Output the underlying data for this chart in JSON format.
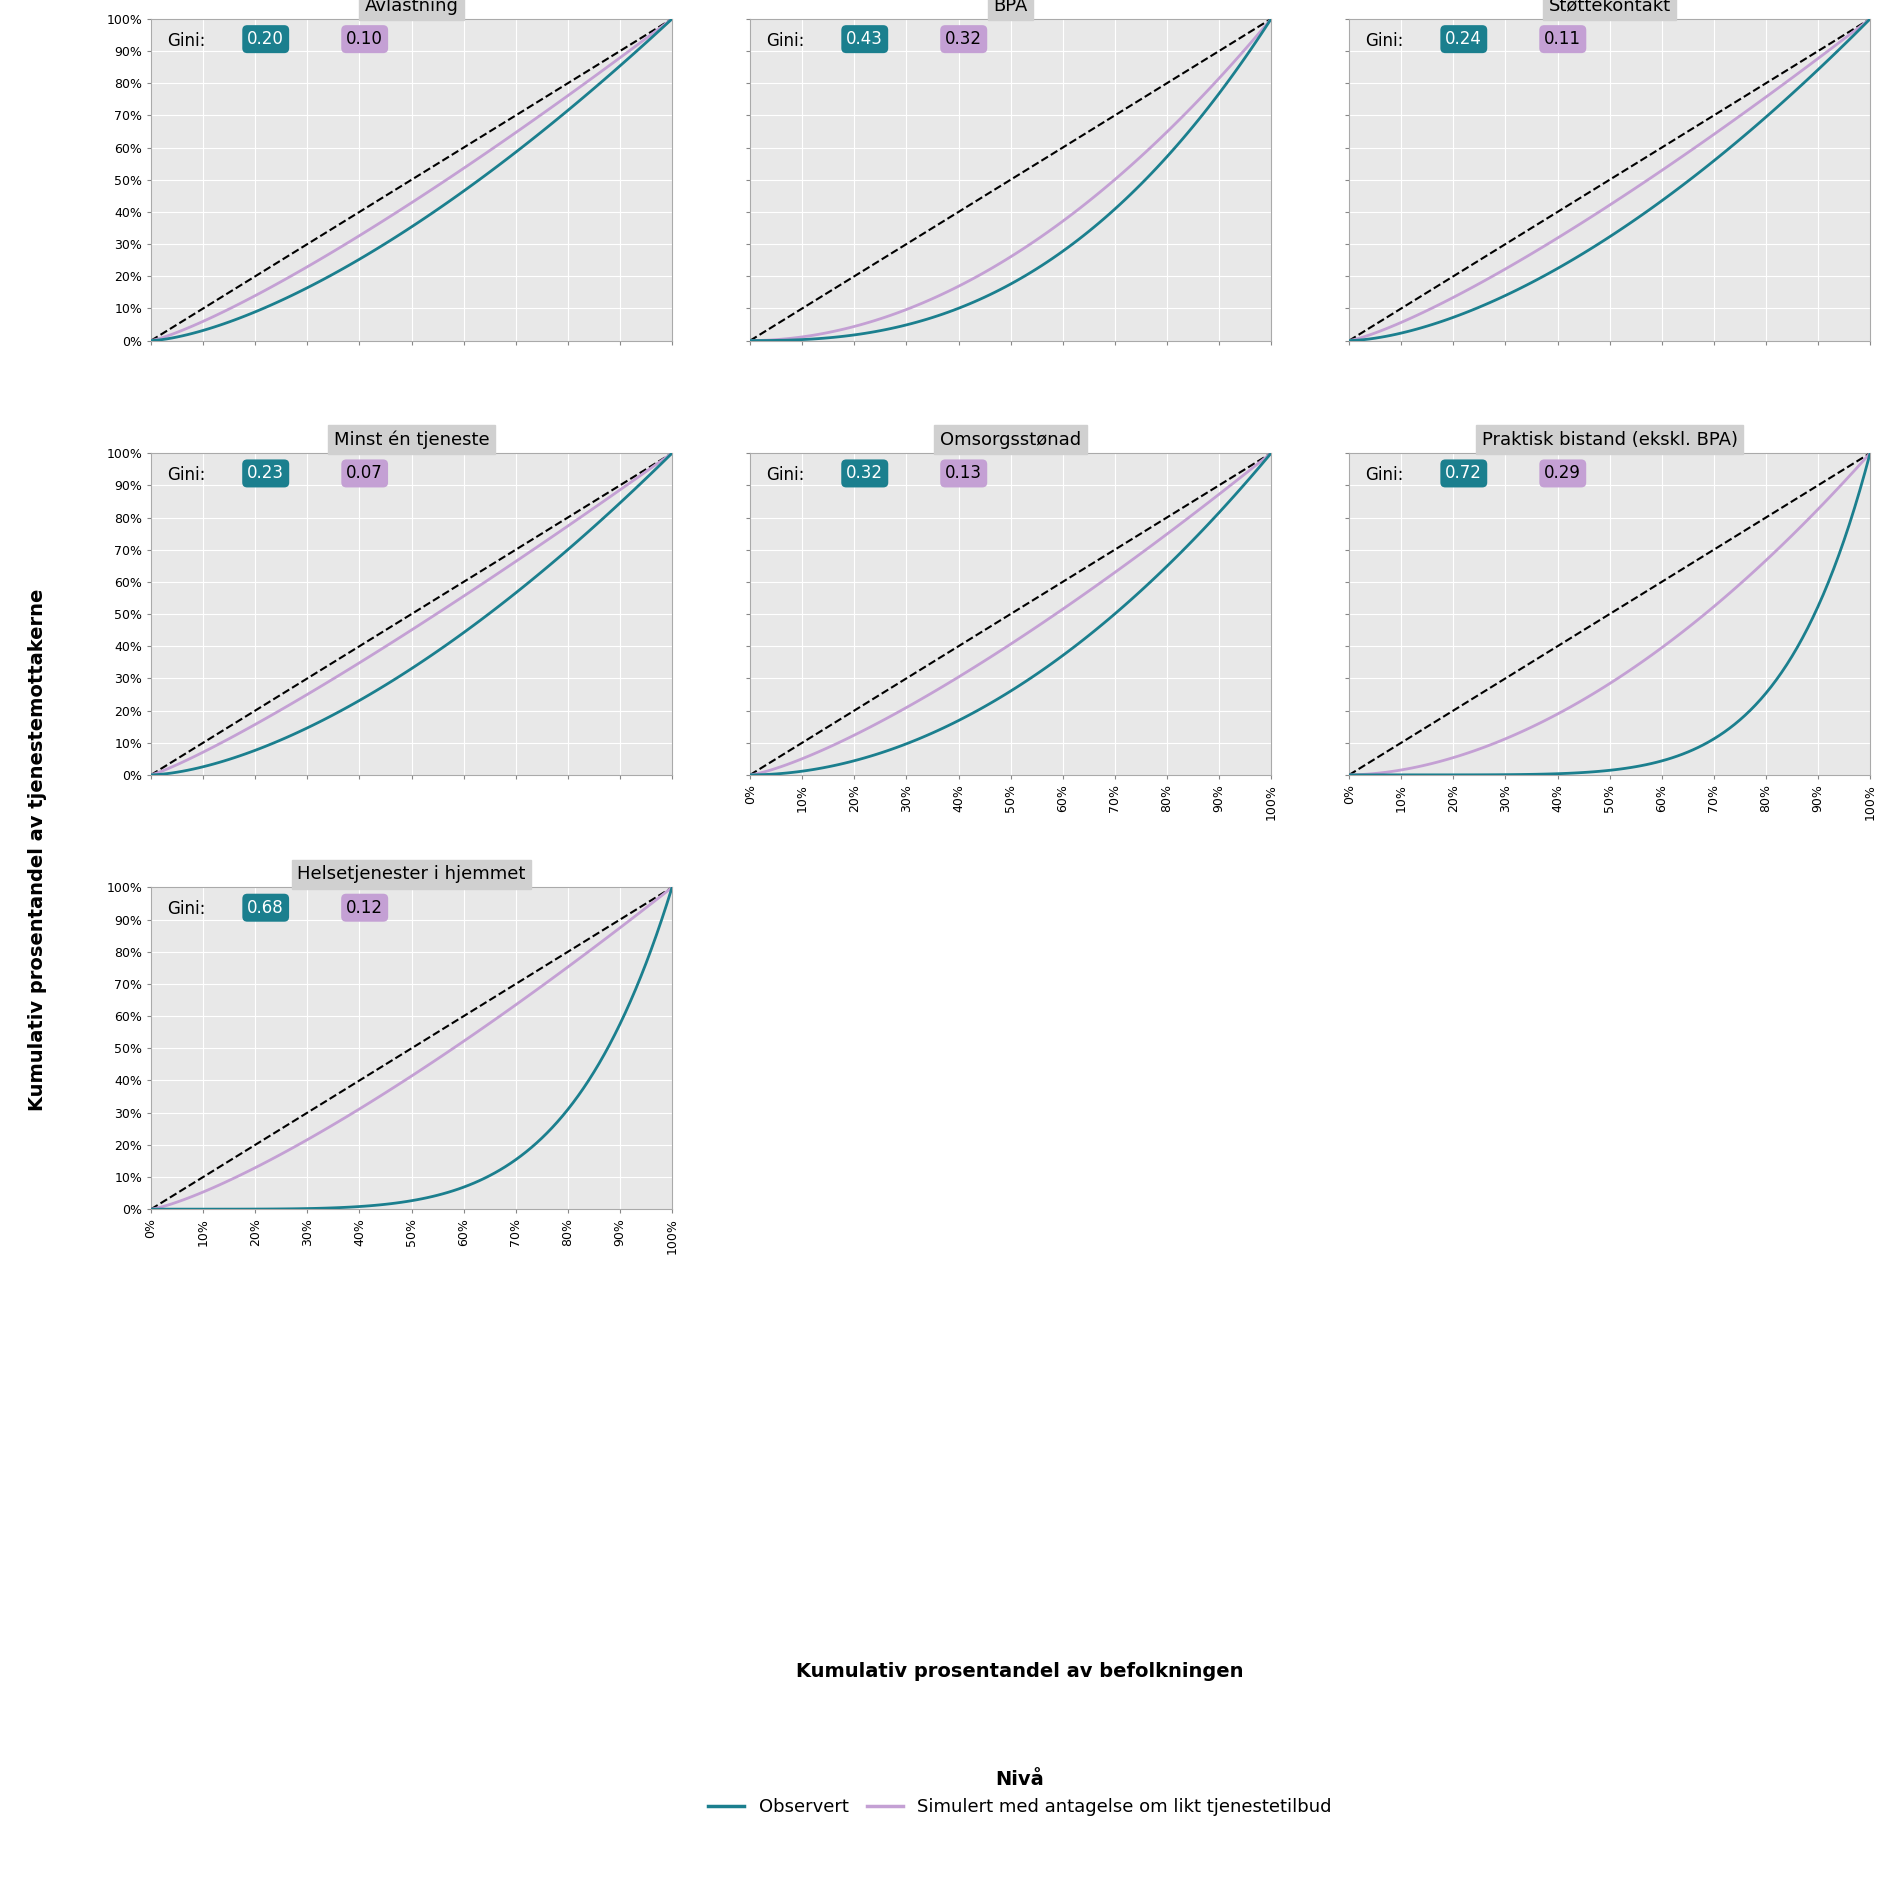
{
  "subplots": [
    {
      "title": "Avlastning",
      "gini_observed": 0.2,
      "gini_simulated": 0.1,
      "lorenz_observed_power": 1.5,
      "lorenz_simulated_power": 1.2
    },
    {
      "title": "BPA",
      "gini_observed": 0.43,
      "gini_simulated": 0.32,
      "lorenz_observed_power": 2.5,
      "lorenz_simulated_power": 2.0
    },
    {
      "title": "Støttekontakt",
      "gini_observed": 0.24,
      "gini_simulated": 0.11,
      "lorenz_observed_power": 1.6,
      "lorenz_simulated_power": 1.25
    },
    {
      "title": "Minst én tjeneste",
      "gini_observed": 0.23,
      "gini_simulated": 0.07,
      "lorenz_observed_power": 1.55,
      "lorenz_simulated_power": 1.1
    },
    {
      "title": "Omsorgsstønad",
      "gini_observed": 0.32,
      "gini_simulated": 0.13,
      "lorenz_observed_power": 2.0,
      "lorenz_simulated_power": 1.3
    },
    {
      "title": "Praktisk bistand (ekskl. BPA)",
      "gini_observed": 0.72,
      "gini_simulated": 0.29,
      "lorenz_observed_power": 5.5,
      "lorenz_simulated_power": 1.8
    },
    {
      "title": "Helsetjenester i hjemmet",
      "gini_observed": 0.68,
      "gini_simulated": 0.12,
      "lorenz_observed_power": 5.0,
      "lorenz_simulated_power": 1.27
    }
  ],
  "color_observed": "#1b7f8e",
  "color_simulated": "#c4a0d4",
  "color_gini_observed_bg": "#1b7f8e",
  "color_gini_simulated_bg": "#c4a0d4",
  "color_diagonal": "#000000",
  "background_color": "#e8e8e8",
  "plot_bg_color": "#e8e8e8",
  "ylabel": "Kumulativ prosentandel av tjenestemottakerne",
  "xlabel": "Kumulativ prosentandel av befolkningen",
  "legend_title": "Nivå",
  "legend_observed": "Observert",
  "legend_simulated": "Simulert med antagelse om likt tjenestetilbud",
  "tick_labels": [
    "0%",
    "10%",
    "20%",
    "30%",
    "40%",
    "50%",
    "60%",
    "70%",
    "80%",
    "90%",
    "100%"
  ],
  "tick_values": [
    0,
    0.1,
    0.2,
    0.3,
    0.4,
    0.5,
    0.6,
    0.7,
    0.8,
    0.9,
    1.0
  ]
}
